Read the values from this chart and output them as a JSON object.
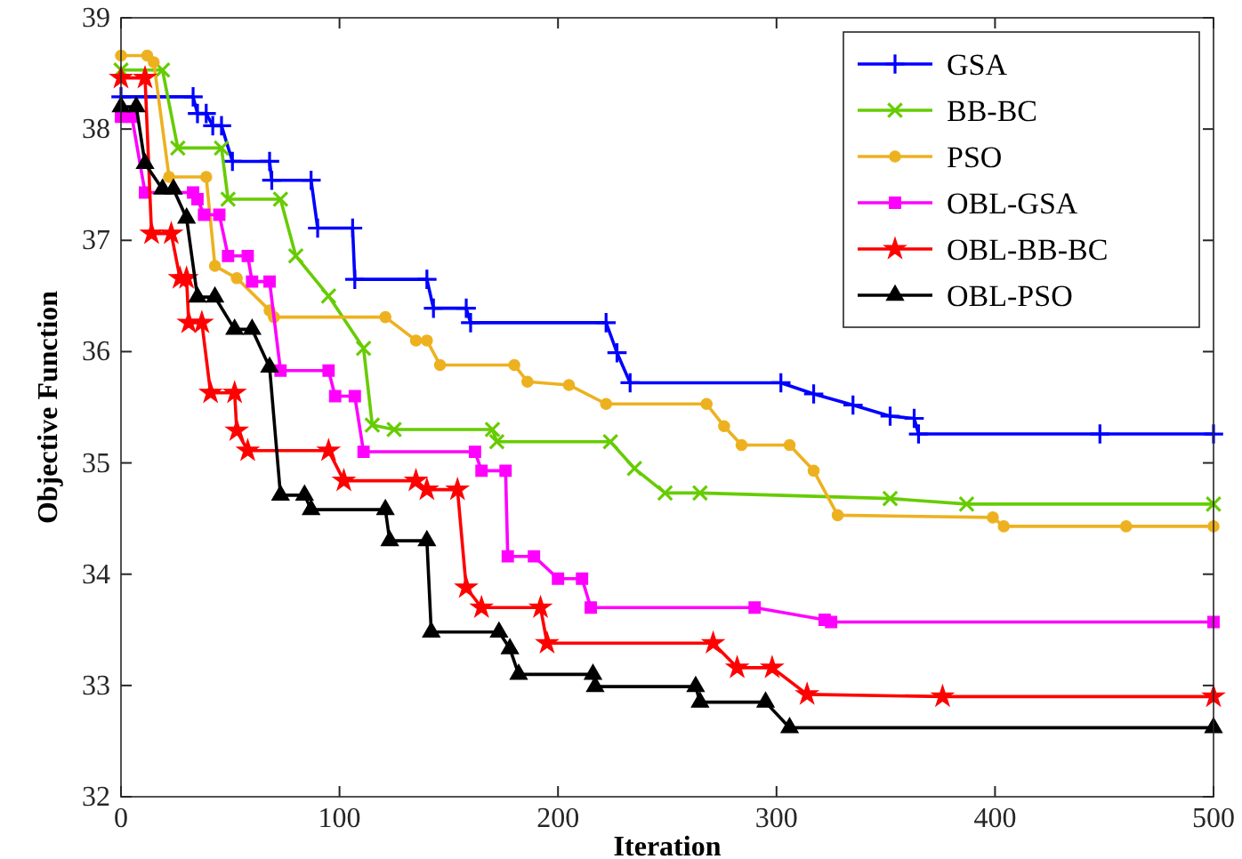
{
  "chart_data": {
    "type": "line",
    "xlabel": "Iteration",
    "ylabel": "Objective Function",
    "xlim": [
      0,
      500
    ],
    "ylim": [
      32,
      39
    ],
    "xticks": [
      0,
      100,
      200,
      300,
      400,
      500
    ],
    "yticks": [
      32,
      33,
      34,
      35,
      36,
      37,
      38,
      39
    ],
    "grid": false,
    "legend": "top right",
    "line_style": "solid",
    "series": [
      {
        "name": "GSA",
        "color": "#0000ff",
        "marker": "plus",
        "x": [
          0,
          33,
          35,
          39,
          42,
          46,
          51,
          68,
          69,
          87,
          90,
          106,
          107,
          140,
          143,
          158,
          160,
          222,
          227,
          233,
          302,
          317,
          335,
          352,
          363,
          365,
          448,
          500
        ],
        "values": [
          38.29,
          38.29,
          38.14,
          38.14,
          38.03,
          38.03,
          37.71,
          37.71,
          37.54,
          37.54,
          37.11,
          37.11,
          36.65,
          36.65,
          36.39,
          36.39,
          36.26,
          36.26,
          35.99,
          35.72,
          35.72,
          35.62,
          35.52,
          35.42,
          35.4,
          35.26,
          35.26,
          35.26
        ]
      },
      {
        "name": "BB-BC",
        "color": "#66cc00",
        "marker": "cross",
        "x": [
          0,
          19,
          26,
          46,
          49,
          73,
          80,
          95,
          111,
          115,
          125,
          170,
          172,
          224,
          235,
          249,
          265,
          352,
          387,
          500
        ],
        "values": [
          38.53,
          38.53,
          37.83,
          37.83,
          37.37,
          37.37,
          36.86,
          36.5,
          36.03,
          35.34,
          35.3,
          35.3,
          35.19,
          35.19,
          34.95,
          34.73,
          34.73,
          34.68,
          34.63,
          34.63
        ]
      },
      {
        "name": "PSO",
        "color": "#edb120",
        "marker": "circle",
        "x": [
          0,
          12,
          15,
          22,
          39,
          43,
          53,
          68,
          70,
          121,
          135,
          140,
          146,
          180,
          186,
          205,
          222,
          268,
          276,
          284,
          306,
          317,
          328,
          399,
          404,
          460,
          500
        ],
        "values": [
          38.66,
          38.66,
          38.6,
          37.57,
          37.57,
          36.77,
          36.66,
          36.37,
          36.31,
          36.31,
          36.1,
          36.1,
          35.88,
          35.88,
          35.73,
          35.7,
          35.53,
          35.53,
          35.33,
          35.16,
          35.16,
          34.93,
          34.53,
          34.51,
          34.43,
          34.43,
          34.43
        ]
      },
      {
        "name": "OBL-GSA",
        "color": "#ff00ff",
        "marker": "square",
        "x": [
          0,
          5,
          11,
          33,
          35,
          38,
          45,
          49,
          58,
          60,
          68,
          73,
          95,
          98,
          107,
          111,
          162,
          165,
          176,
          177,
          189,
          200,
          211,
          215,
          290,
          322,
          325,
          500
        ],
        "values": [
          38.11,
          38.11,
          37.43,
          37.43,
          37.37,
          37.23,
          37.23,
          36.86,
          36.86,
          36.63,
          36.63,
          35.83,
          35.83,
          35.6,
          35.6,
          35.1,
          35.1,
          34.93,
          34.93,
          34.16,
          34.16,
          33.96,
          33.96,
          33.7,
          33.7,
          33.59,
          33.57,
          33.57
        ]
      },
      {
        "name": "OBL-BB-BC",
        "color": "#ff0000",
        "marker": "star",
        "x": [
          0,
          11,
          14,
          23,
          27,
          30,
          31,
          37,
          41,
          52,
          53,
          58,
          95,
          102,
          135,
          140,
          154,
          158,
          165,
          192,
          195,
          271,
          282,
          298,
          314,
          376,
          500
        ],
        "values": [
          38.46,
          38.46,
          37.06,
          37.06,
          36.66,
          36.66,
          36.26,
          36.26,
          35.63,
          35.63,
          35.29,
          35.11,
          35.11,
          34.84,
          34.84,
          34.76,
          34.76,
          33.88,
          33.7,
          33.7,
          33.38,
          33.38,
          33.16,
          33.16,
          32.92,
          32.9,
          32.9
        ]
      },
      {
        "name": "OBL-PSO",
        "color": "#000000",
        "marker": "triangle",
        "x": [
          0,
          7,
          11,
          19,
          24,
          30,
          35,
          43,
          52,
          60,
          68,
          73,
          84,
          87,
          121,
          123,
          140,
          142,
          173,
          178,
          182,
          216,
          217,
          263,
          265,
          295,
          306,
          500
        ],
        "values": [
          38.2,
          38.2,
          37.69,
          37.46,
          37.46,
          37.2,
          36.49,
          36.49,
          36.2,
          36.2,
          35.86,
          34.71,
          34.71,
          34.58,
          34.58,
          34.3,
          34.3,
          33.48,
          33.48,
          33.33,
          33.1,
          33.1,
          32.99,
          32.99,
          32.85,
          32.85,
          32.62,
          32.62
        ]
      }
    ]
  }
}
